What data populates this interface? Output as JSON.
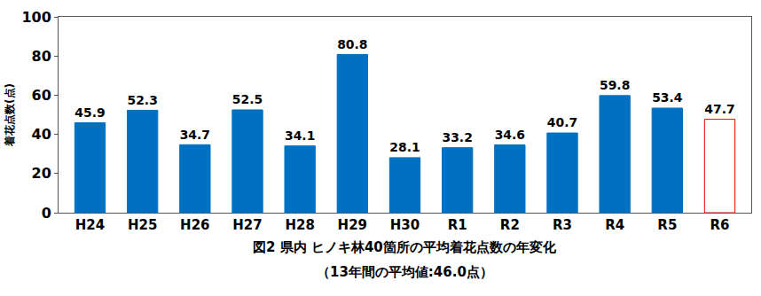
{
  "chart_data": {
    "type": "bar",
    "title": "図2 県内 ヒノキ林40箇所の平均着花点数の年変化",
    "subtitle": "（13年間の平均値:46.0点）",
    "y_label": "着花点数(点)",
    "categories": [
      "H24",
      "H25",
      "H26",
      "H27",
      "H28",
      "H29",
      "H30",
      "R1",
      "R2",
      "R3",
      "R4",
      "R5",
      "R6"
    ],
    "values": [
      45.9,
      52.3,
      34.7,
      52.5,
      34.1,
      80.8,
      28.1,
      33.2,
      34.6,
      40.7,
      59.8,
      53.4,
      47.7
    ],
    "colors": [
      "#0070c0",
      "#0070c0",
      "#0070c0",
      "#0070c0",
      "#0070c0",
      "#0070c0",
      "#0070c0",
      "#0070c0",
      "#0070c0",
      "#0070c0",
      "#0070c0",
      "#0070c0",
      "#ff0000"
    ],
    "ylim": [
      0,
      100
    ],
    "yticks": [
      0,
      20,
      40,
      60,
      80,
      100
    ],
    "grid": false,
    "data_labels": true
  }
}
